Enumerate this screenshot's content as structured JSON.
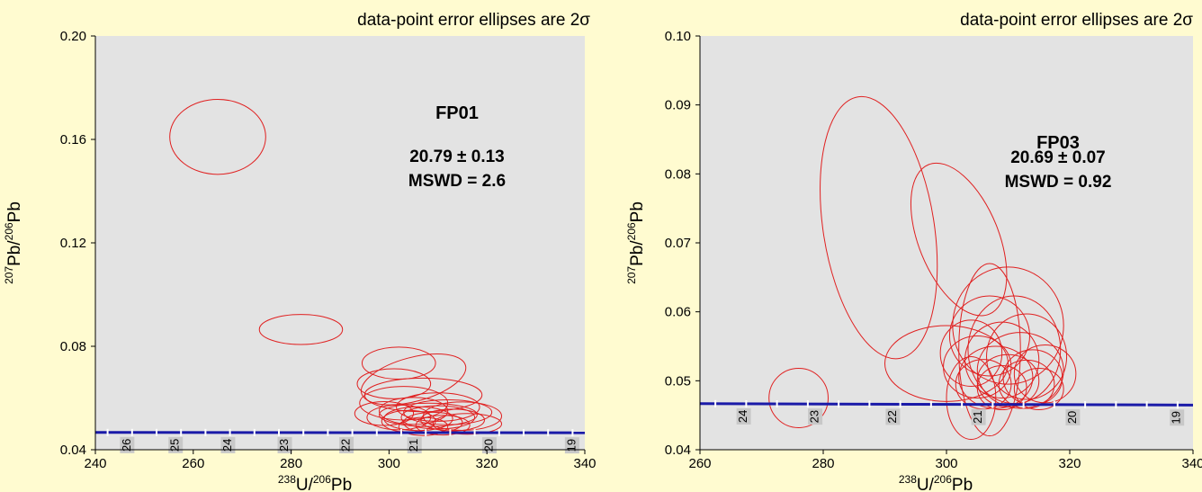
{
  "colors": {
    "background": "#fffbd0",
    "plot_area": "#e3e3e3",
    "ellipse": "#e02020",
    "concordia": "#1a1aa8",
    "tick_label_bg": "#c8c8c8"
  },
  "chart_data": [
    {
      "type": "scatter",
      "subtype": "Tera-Wasserburg concordia with 2-sigma error ellipses",
      "note_text": "data-point error ellipses are 2σ",
      "sample": "FP01",
      "age": "20.79 ± 0.13",
      "mswd": "MSWD = 2.6",
      "xlabel": {
        "sup": "238",
        "main": "U/",
        "sup2": "206",
        "tail": "Pb"
      },
      "ylabel": {
        "sup": "207",
        "main": "Pb/",
        "sup2": "206",
        "tail": "Pb"
      },
      "xlim": [
        240,
        340
      ],
      "ylim": [
        0.04,
        0.2
      ],
      "xticks": [
        240,
        260,
        280,
        300,
        320,
        340
      ],
      "xtick_labels": [
        "240",
        "260",
        "280",
        "300",
        "320",
        "340"
      ],
      "yticks": [
        0.04,
        0.08,
        0.12,
        0.16,
        0.2
      ],
      "ytick_labels": [
        "0.04",
        "0.08",
        "0.12",
        "0.16",
        "0.20"
      ],
      "concordia_y": [
        0.04668,
        0.04656
      ],
      "age_markers": [
        {
          "label": "26",
          "x": 246.5
        },
        {
          "label": "25",
          "x": 256.4
        },
        {
          "label": "24",
          "x": 267.1
        },
        {
          "label": "23",
          "x": 278.7
        },
        {
          "label": "22",
          "x": 291.3
        },
        {
          "label": "21",
          "x": 305.2
        },
        {
          "label": "20",
          "x": 320.5
        },
        {
          "label": "19",
          "x": 337.4
        }
      ],
      "ellipses": [
        {
          "cx": 265,
          "cy": 0.161,
          "rx": 9.8,
          "ry": 0.0145,
          "rot": 0
        },
        {
          "cx": 282,
          "cy": 0.0865,
          "rx": 8.5,
          "ry": 0.0058,
          "rot": 0
        },
        {
          "cx": 302,
          "cy": 0.0735,
          "rx": 7.5,
          "ry": 0.0062,
          "rot": 0
        },
        {
          "cx": 305,
          "cy": 0.0672,
          "rx": 11,
          "ry": 0.0085,
          "rot": -15
        },
        {
          "cx": 301,
          "cy": 0.0655,
          "rx": 7.5,
          "ry": 0.0058,
          "rot": 0
        },
        {
          "cx": 307,
          "cy": 0.0612,
          "rx": 12,
          "ry": 0.0065,
          "rot": 0
        },
        {
          "cx": 303,
          "cy": 0.058,
          "rx": 9,
          "ry": 0.0065,
          "rot": 0
        },
        {
          "cx": 310,
          "cy": 0.0565,
          "rx": 8.5,
          "ry": 0.0055,
          "rot": 0
        },
        {
          "cx": 305,
          "cy": 0.055,
          "rx": 7,
          "ry": 0.0052,
          "rot": 0
        },
        {
          "cx": 312,
          "cy": 0.0545,
          "rx": 9,
          "ry": 0.0048,
          "rot": 0
        },
        {
          "cx": 299,
          "cy": 0.054,
          "rx": 6,
          "ry": 0.0046,
          "rot": 0
        },
        {
          "cx": 308,
          "cy": 0.0535,
          "rx": 10,
          "ry": 0.0045,
          "rot": 0
        },
        {
          "cx": 315,
          "cy": 0.053,
          "rx": 8,
          "ry": 0.0055,
          "rot": 0
        },
        {
          "cx": 302,
          "cy": 0.0525,
          "rx": 6.5,
          "ry": 0.0048,
          "rot": 0
        },
        {
          "cx": 310,
          "cy": 0.0525,
          "rx": 7.5,
          "ry": 0.0045,
          "rot": 0
        },
        {
          "cx": 306,
          "cy": 0.052,
          "rx": 7,
          "ry": 0.0046,
          "rot": 0
        },
        {
          "cx": 313,
          "cy": 0.0515,
          "rx": 6.5,
          "ry": 0.0042,
          "rot": 0
        },
        {
          "cx": 304,
          "cy": 0.051,
          "rx": 5.5,
          "ry": 0.0042,
          "rot": 0
        },
        {
          "cx": 309,
          "cy": 0.0505,
          "rx": 6,
          "ry": 0.004,
          "rot": 0
        },
        {
          "cx": 316,
          "cy": 0.05,
          "rx": 7,
          "ry": 0.004,
          "rot": 0
        },
        {
          "cx": 311,
          "cy": 0.0495,
          "rx": 5.5,
          "ry": 0.0038,
          "rot": 0
        },
        {
          "cx": 307,
          "cy": 0.049,
          "rx": 5,
          "ry": 0.0035,
          "rot": 0
        }
      ]
    },
    {
      "type": "scatter",
      "subtype": "Tera-Wasserburg concordia with 2-sigma error ellipses",
      "note_text": "data-point error ellipses are 2σ",
      "sample": "FP03",
      "age": "20.69 ± 0.07",
      "mswd": "MSWD = 0.92",
      "xlabel": {
        "sup": "238",
        "main": "U/",
        "sup2": "206",
        "tail": "Pb"
      },
      "ylabel": {
        "sup": "207",
        "main": "Pb/",
        "sup2": "206",
        "tail": "Pb"
      },
      "xlim": [
        260,
        340
      ],
      "ylim": [
        0.04,
        0.1
      ],
      "xticks": [
        260,
        280,
        300,
        320,
        340
      ],
      "xtick_labels": [
        "260",
        "280",
        "300",
        "320",
        "340"
      ],
      "yticks": [
        0.04,
        0.05,
        0.06,
        0.07,
        0.08,
        0.09,
        0.1
      ],
      "ytick_labels": [
        "0.04",
        "0.05",
        "0.06",
        "0.07",
        "0.08",
        "0.09",
        "0.10"
      ],
      "concordia_y": [
        0.04668,
        0.04648
      ],
      "age_markers": [
        {
          "label": "24",
          "x": 267.1
        },
        {
          "label": "23",
          "x": 278.7
        },
        {
          "label": "22",
          "x": 291.3
        },
        {
          "label": "21",
          "x": 305.2
        },
        {
          "label": "20",
          "x": 320.5
        },
        {
          "label": "19",
          "x": 337.4
        }
      ],
      "ellipses": [
        {
          "cx": 289,
          "cy": 0.0722,
          "rx": 9,
          "ry": 0.0192,
          "rot": -9
        },
        {
          "cx": 302,
          "cy": 0.0705,
          "rx": 6.5,
          "ry": 0.0117,
          "rot": -22
        },
        {
          "cx": 276,
          "cy": 0.0475,
          "rx": 4.8,
          "ry": 0.0043,
          "rot": 0
        },
        {
          "cx": 300,
          "cy": 0.0525,
          "rx": 10,
          "ry": 0.0055,
          "rot": 0
        },
        {
          "cx": 310,
          "cy": 0.058,
          "rx": 9,
          "ry": 0.0085,
          "rot": 0
        },
        {
          "cx": 307,
          "cy": 0.0565,
          "rx": 6.5,
          "ry": 0.0058,
          "rot": 0
        },
        {
          "cx": 311,
          "cy": 0.0545,
          "rx": 7.5,
          "ry": 0.0078,
          "rot": 0
        },
        {
          "cx": 304,
          "cy": 0.054,
          "rx": 5,
          "ry": 0.0048,
          "rot": 0
        },
        {
          "cx": 313,
          "cy": 0.0535,
          "rx": 6.5,
          "ry": 0.0062,
          "rot": 0
        },
        {
          "cx": 309,
          "cy": 0.053,
          "rx": 6,
          "ry": 0.0055,
          "rot": 0
        },
        {
          "cx": 305,
          "cy": 0.052,
          "rx": 5.5,
          "ry": 0.0045,
          "rot": 0
        },
        {
          "cx": 312,
          "cy": 0.0515,
          "rx": 7,
          "ry": 0.0055,
          "rot": 0
        },
        {
          "cx": 316,
          "cy": 0.051,
          "rx": 5,
          "ry": 0.0042,
          "rot": 0
        },
        {
          "cx": 308,
          "cy": 0.0505,
          "rx": 6,
          "ry": 0.0045,
          "rot": 0
        },
        {
          "cx": 314,
          "cy": 0.0505,
          "rx": 4.8,
          "ry": 0.004,
          "rot": 0
        },
        {
          "cx": 310,
          "cy": 0.05,
          "rx": 5,
          "ry": 0.0038,
          "rot": 0
        },
        {
          "cx": 306,
          "cy": 0.0495,
          "rx": 4.5,
          "ry": 0.0036,
          "rot": 0
        },
        {
          "cx": 313,
          "cy": 0.0495,
          "rx": 4.5,
          "ry": 0.0035,
          "rot": 0
        },
        {
          "cx": 309,
          "cy": 0.049,
          "rx": 4,
          "ry": 0.0032,
          "rot": 0
        },
        {
          "cx": 315,
          "cy": 0.0488,
          "rx": 4,
          "ry": 0.003,
          "rot": 0
        },
        {
          "cx": 307,
          "cy": 0.0545,
          "rx": 5,
          "ry": 0.0125,
          "rot": 0
        },
        {
          "cx": 304,
          "cy": 0.0475,
          "rx": 4,
          "ry": 0.006,
          "rot": 0
        }
      ]
    }
  ]
}
